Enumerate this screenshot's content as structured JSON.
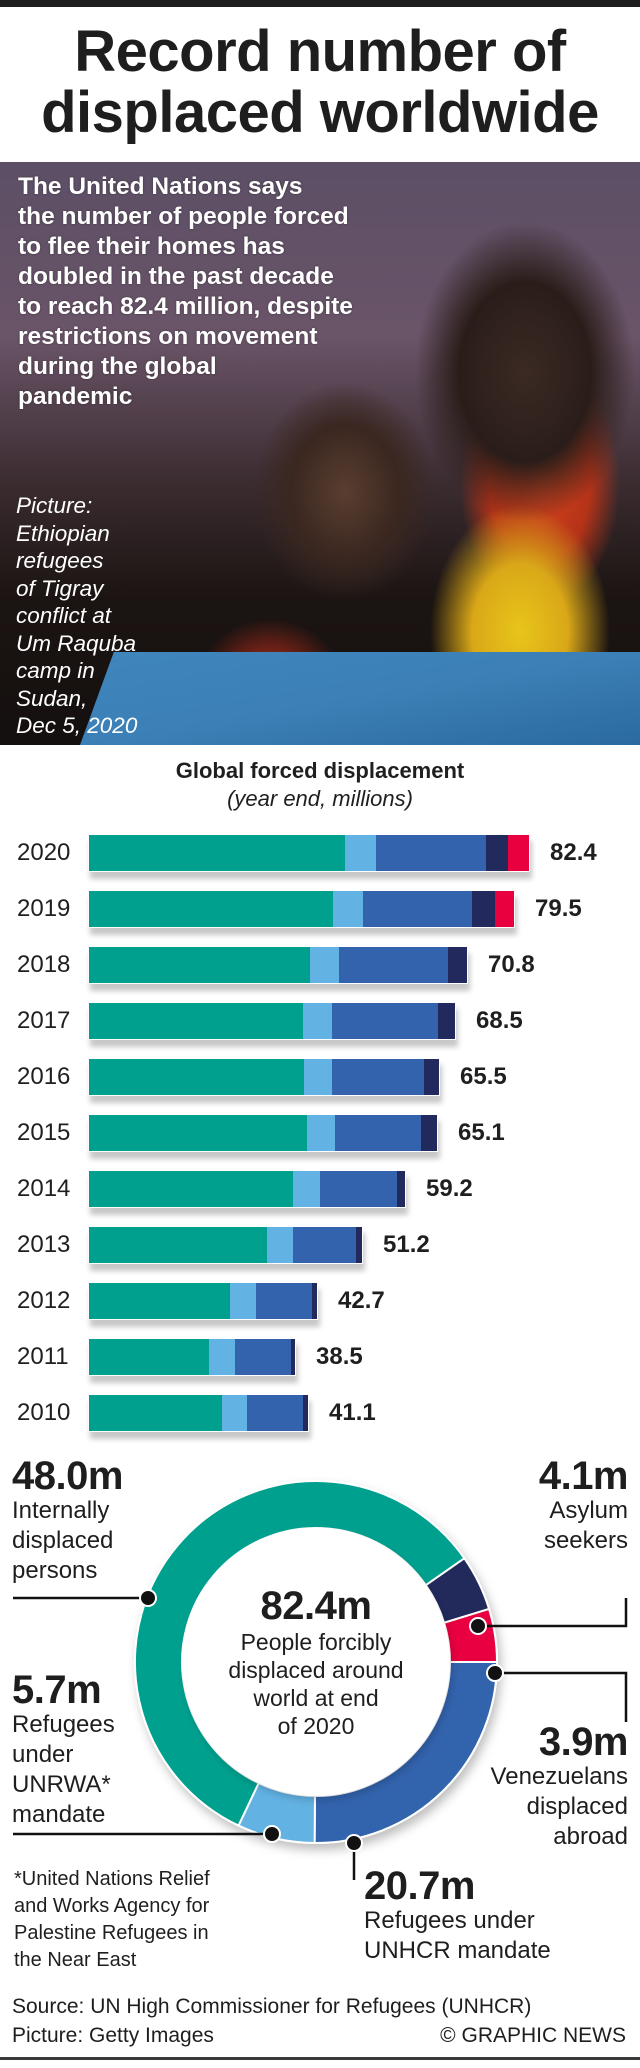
{
  "header": {
    "title_line1": "Record number of",
    "title_line2": "displaced worldwide"
  },
  "photo": {
    "intro_lines": [
      "The United Nations says",
      "the number of people forced",
      "to flee their homes has",
      "doubled in the past decade",
      "to reach 82.4 million, despite",
      "restrictions on movement",
      "during the global",
      "pandemic"
    ],
    "caption_lines": [
      "Picture:",
      "Ethiopian",
      "refugees",
      "of Tigray",
      "conflict at",
      "Um Raquba",
      "camp in",
      "Sudan,",
      "Dec 5, 2020"
    ]
  },
  "colors": {
    "idp": "#00a08f",
    "unrwa": "#62b2e4",
    "unhcr": "#3363ad",
    "asylum": "#22295c",
    "venezuelans": "#e8003f"
  },
  "chart_data": [
    {
      "type": "bar",
      "orientation": "horizontal-stacked",
      "title": "Global forced displacement",
      "subtitle": "(year end, millions)",
      "categories": [
        "2020",
        "2019",
        "2018",
        "2017",
        "2016",
        "2015",
        "2014",
        "2013",
        "2012",
        "2011",
        "2010"
      ],
      "totals": [
        "82.4",
        "79.5",
        "70.8",
        "68.5",
        "65.5",
        "65.1",
        "59.2",
        "51.2",
        "42.7",
        "38.5",
        "41.1"
      ],
      "series": [
        {
          "name": "Internally displaced persons",
          "color_key": "idp",
          "values": [
            48.0,
            45.7,
            41.3,
            40.0,
            40.3,
            40.8,
            38.2,
            33.3,
            26.4,
            22.5,
            24.9
          ]
        },
        {
          "name": "Refugees under UNRWA mandate",
          "color_key": "unrwa",
          "values": [
            5.7,
            5.6,
            5.5,
            5.4,
            5.3,
            5.2,
            5.1,
            5.0,
            4.9,
            4.8,
            4.8
          ]
        },
        {
          "name": "Refugees under UNHCR mandate",
          "color_key": "unhcr",
          "values": [
            20.7,
            20.4,
            20.4,
            19.9,
            17.2,
            16.1,
            14.4,
            11.7,
            10.5,
            10.4,
            10.5
          ]
        },
        {
          "name": "Asylum seekers",
          "color_key": "asylum",
          "values": [
            4.1,
            4.2,
            3.6,
            3.2,
            2.8,
            3.0,
            1.5,
            1.2,
            0.9,
            0.8,
            0.9
          ]
        },
        {
          "name": "Venezuelans displaced abroad",
          "color_key": "venezuelans",
          "values": [
            3.9,
            3.6,
            0,
            0,
            0,
            0,
            0,
            0,
            0,
            0,
            0
          ]
        }
      ],
      "xlabel": "",
      "ylabel": "",
      "xlim": [
        0,
        82.4
      ],
      "grid": false,
      "legend": "none"
    },
    {
      "type": "pie",
      "variant": "donut",
      "title": "People forcibly displaced around world at end of 2020",
      "total": 82.4,
      "slices": [
        {
          "name": "Refugees under UNHCR mandate",
          "value": 20.7,
          "color_key": "unhcr"
        },
        {
          "name": "Refugees under UNRWA* mandate",
          "value": 5.7,
          "color_key": "unrwa"
        },
        {
          "name": "Internally displaced persons",
          "value": 48.0,
          "color_key": "idp"
        },
        {
          "name": "Asylum seekers",
          "value": 4.1,
          "color_key": "asylum"
        },
        {
          "name": "Venezuelans displaced abroad",
          "value": 3.9,
          "color_key": "venezuelans"
        }
      ],
      "start": "3 o'clock, clockwise"
    }
  ],
  "donut": {
    "center_value": "82.4m",
    "center_lines": [
      "People forcibly",
      "displaced around",
      "world at end",
      "of 2020"
    ],
    "callouts": {
      "idp": {
        "value": "48.0m",
        "lines": [
          "Internally",
          "displaced",
          "persons"
        ]
      },
      "asylum": {
        "value": "4.1m",
        "lines": [
          "Asylum",
          "seekers"
        ]
      },
      "unrwa": {
        "value": "5.7m",
        "lines": [
          "Refugees",
          "under",
          "UNRWA*",
          "mandate"
        ]
      },
      "venezuelans": {
        "value": "3.9m",
        "lines": [
          "Venezuelans",
          "displaced",
          "abroad"
        ]
      },
      "unhcr": {
        "value": "20.7m",
        "lines": [
          "Refugees under",
          "UNHCR mandate"
        ]
      }
    }
  },
  "footnote_lines": [
    "*United Nations Relief",
    "and Works Agency for",
    "Palestine Refugees in",
    "the Near East"
  ],
  "footer": {
    "source": "Source: UN High Commissioner for Refugees (UNHCR)",
    "picture_credit": "Picture: Getty Images",
    "copyright": "© GRAPHIC NEWS"
  }
}
